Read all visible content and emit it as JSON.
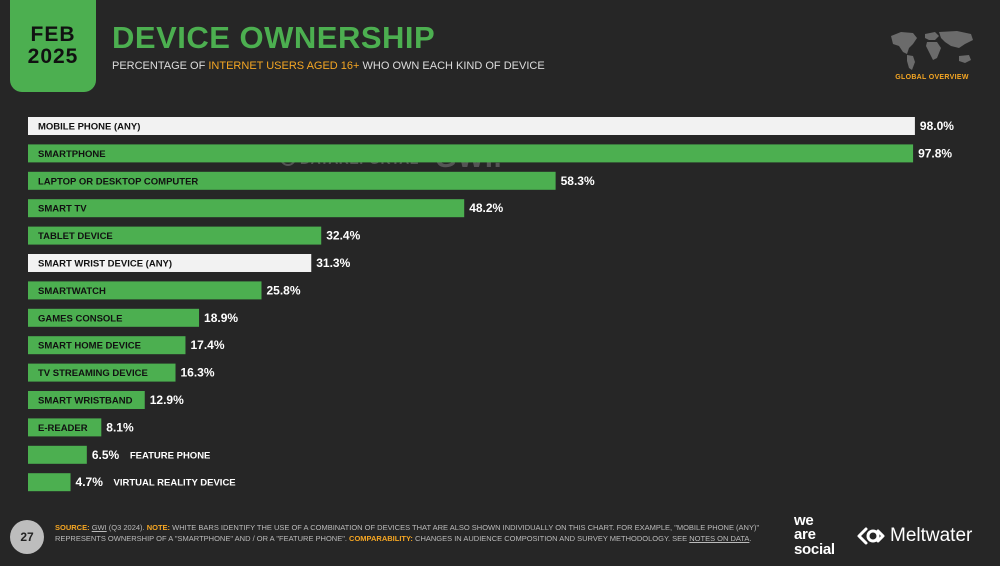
{
  "header": {
    "month": "FEB",
    "year": "2025",
    "title": "DEVICE OWNERSHIP",
    "subtitle_pre": "PERCENTAGE OF ",
    "subtitle_highlight": "INTERNET USERS AGED 16+",
    "subtitle_post": " WHO OWN EACH KIND OF DEVICE",
    "region_label": "GLOBAL OVERVIEW"
  },
  "watermark": {
    "datareportal": "DATAREPORTAL",
    "gwi": "GWI."
  },
  "colors": {
    "accent": "#4caf50",
    "highlight": "#f5a623",
    "white_bar": "#f2f2f2",
    "background": "#262626"
  },
  "chart_data": {
    "type": "bar",
    "orientation": "horizontal",
    "unit": "%",
    "xlim": [
      0,
      100
    ],
    "grid": false,
    "categories": [
      "MOBILE PHONE (ANY)",
      "SMARTPHONE",
      "LAPTOP OR DESKTOP COMPUTER",
      "SMART TV",
      "TABLET DEVICE",
      "SMART WRIST DEVICE (ANY)",
      "SMARTWATCH",
      "GAMES CONSOLE",
      "SMART HOME DEVICE",
      "TV STREAMING DEVICE",
      "SMART WRISTBAND",
      "E-READER",
      "FEATURE PHONE",
      "VIRTUAL REALITY DEVICE"
    ],
    "values": [
      98.0,
      97.8,
      58.3,
      48.2,
      32.4,
      31.3,
      25.8,
      18.9,
      17.4,
      16.3,
      12.9,
      8.1,
      6.5,
      4.7
    ],
    "value_labels": [
      "98.0%",
      "97.8%",
      "58.3%",
      "48.2%",
      "32.4%",
      "31.3%",
      "25.8%",
      "18.9%",
      "17.4%",
      "16.3%",
      "12.9%",
      "8.1%",
      "6.5%",
      "4.7%"
    ],
    "bar_colors": [
      "white",
      "green",
      "green",
      "green",
      "green",
      "white",
      "green",
      "green",
      "green",
      "green",
      "green",
      "green",
      "green",
      "green"
    ]
  },
  "footer": {
    "page_number": "27",
    "source_key": "SOURCE:",
    "source_link": "GWI",
    "source_text": " (Q3 2024). ",
    "note_key": "NOTE:",
    "note_text": " WHITE BARS IDENTIFY THE USE OF A COMBINATION OF DEVICES THAT ARE ALSO SHOWN INDIVIDUALLY ON THIS CHART. FOR EXAMPLE, \"MOBILE PHONE (ANY)\" REPRESENTS OWNERSHIP OF A \"SMARTPHONE\" AND / OR A \"FEATURE PHONE\". ",
    "comparability_key": "COMPARABILITY:",
    "comparability_text": " CHANGES IN AUDIENCE COMPOSITION AND SURVEY METHODOLOGY. SEE ",
    "notes_link": "NOTES ON DATA",
    "end_text": ".",
    "logo_we": "we",
    "logo_are": "are",
    "logo_social": "social",
    "logo_meltwater": "Meltwater"
  }
}
